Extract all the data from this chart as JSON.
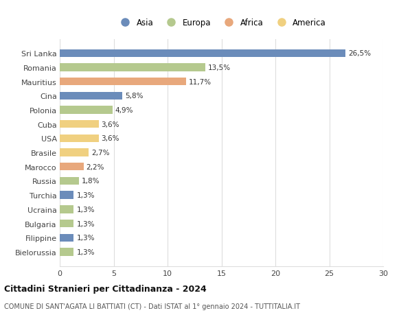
{
  "countries": [
    "Sri Lanka",
    "Romania",
    "Mauritius",
    "Cina",
    "Polonia",
    "Cuba",
    "USA",
    "Brasile",
    "Marocco",
    "Russia",
    "Turchia",
    "Ucraina",
    "Bulgaria",
    "Filippine",
    "Bielorussia"
  ],
  "values": [
    26.5,
    13.5,
    11.7,
    5.8,
    4.9,
    3.6,
    3.6,
    2.7,
    2.2,
    1.8,
    1.3,
    1.3,
    1.3,
    1.3,
    1.3
  ],
  "labels": [
    "26,5%",
    "13,5%",
    "11,7%",
    "5,8%",
    "4,9%",
    "3,6%",
    "3,6%",
    "2,7%",
    "2,2%",
    "1,8%",
    "1,3%",
    "1,3%",
    "1,3%",
    "1,3%",
    "1,3%"
  ],
  "continents": [
    "Asia",
    "Europa",
    "Africa",
    "Asia",
    "Europa",
    "America",
    "America",
    "America",
    "Africa",
    "Europa",
    "Asia",
    "Europa",
    "Europa",
    "Asia",
    "Europa"
  ],
  "colors": {
    "Asia": "#6b8cba",
    "Europa": "#b5c98e",
    "Africa": "#e8a87c",
    "America": "#f0d080"
  },
  "legend_order": [
    "Asia",
    "Europa",
    "Africa",
    "America"
  ],
  "title": "Cittadini Stranieri per Cittadinanza - 2024",
  "subtitle": "COMUNE DI SANT'AGATA LI BATTIATI (CT) - Dati ISTAT al 1° gennaio 2024 - TUTTITALIA.IT",
  "xlim": [
    0,
    30
  ],
  "xticks": [
    0,
    5,
    10,
    15,
    20,
    25,
    30
  ],
  "background_color": "#ffffff",
  "grid_color": "#dddddd"
}
